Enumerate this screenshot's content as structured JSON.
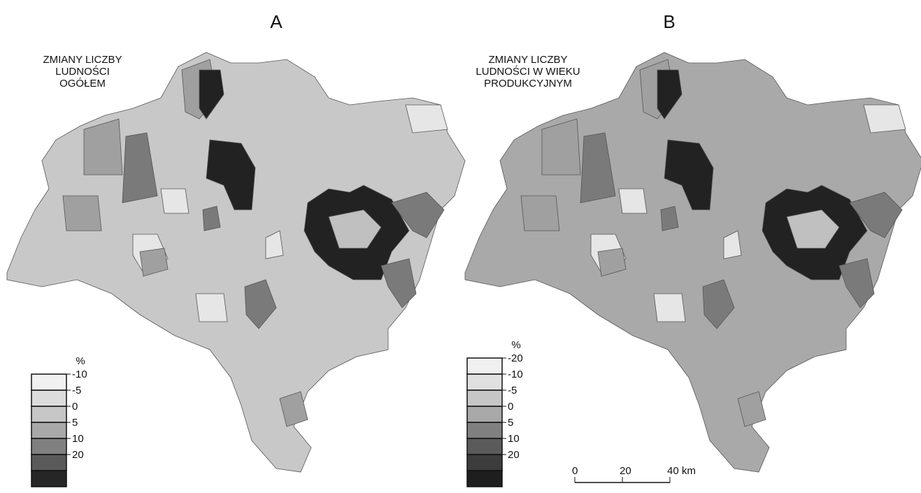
{
  "panels": [
    {
      "label": "A",
      "title_lines": [
        "ZMIANY LICZBY",
        "LUDNOŚCI",
        "OGÓŁEM"
      ],
      "legend": {
        "unit": "%",
        "labels": [
          "-10",
          "-5",
          "0",
          "5",
          "10",
          "20"
        ],
        "colors": [
          "#f0f0f0",
          "#dcdcdc",
          "#c6c6c6",
          "#a8a8a8",
          "#808080",
          "#5a5a5a",
          "#262626"
        ]
      }
    },
    {
      "label": "B",
      "title_lines": [
        "ZMIANY LICZBY",
        "LUDNOŚCI W WIEKU",
        "PRODUKCYJNYM"
      ],
      "legend": {
        "unit": "%",
        "labels": [
          "-20",
          "-10",
          "-5",
          "0",
          "5",
          "10",
          "20"
        ],
        "colors": [
          "#f0f0f0",
          "#e0e0e0",
          "#c6c6c6",
          "#a8a8a8",
          "#808080",
          "#5a5a5a",
          "#3c3c3c",
          "#1e1e1e"
        ]
      },
      "scale_bar": [
        "0",
        "20",
        "40 km"
      ]
    }
  ]
}
